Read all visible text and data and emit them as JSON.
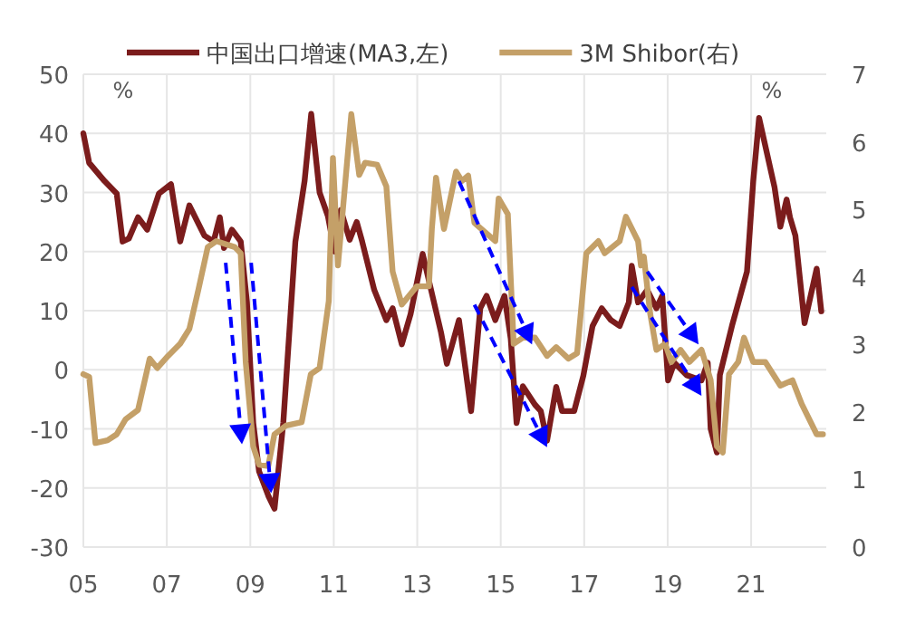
{
  "chart_data": {
    "type": "line",
    "ylabel": "%",
    "y2label": "%",
    "xlim": [
      2005,
      2022.8
    ],
    "xticks": [
      {
        "value": 2005,
        "label": "05"
      },
      {
        "value": 2007,
        "label": "07"
      },
      {
        "value": 2009,
        "label": "09"
      },
      {
        "value": 2011,
        "label": "11"
      },
      {
        "value": 2013,
        "label": "13"
      },
      {
        "value": 2015,
        "label": "15"
      },
      {
        "value": 2017,
        "label": "17"
      },
      {
        "value": 2019,
        "label": "19"
      },
      {
        "value": 2021,
        "label": "21"
      }
    ],
    "ylim": [
      -30,
      50
    ],
    "yticks": [
      -30,
      -20,
      -10,
      0,
      10,
      20,
      30,
      40,
      50
    ],
    "y2lim": [
      0,
      7
    ],
    "y2ticks": [
      0,
      1,
      2,
      3,
      4,
      5,
      6,
      7
    ],
    "grid": true,
    "legend": "top",
    "line_style": "solid",
    "marker": "none",
    "series": [
      {
        "name": "中国出口增速(MA3,左)",
        "color": "#7b1c1c",
        "axis": "y",
        "x": [
          2005.0,
          2005.14,
          2005.51,
          2005.8,
          2005.87,
          2005.94,
          2006.09,
          2006.31,
          2006.53,
          2006.81,
          2007.1,
          2007.18,
          2007.32,
          2007.54,
          2007.9,
          2008.12,
          2008.27,
          2008.37,
          2008.56,
          2008.77,
          2008.92,
          2009.07,
          2009.21,
          2009.43,
          2009.58,
          2009.79,
          2010.08,
          2010.3,
          2010.46,
          2010.66,
          2010.86,
          2011.02,
          2011.17,
          2011.38,
          2011.55,
          2011.68,
          2011.97,
          2012.26,
          2012.41,
          2012.63,
          2012.84,
          2013.13,
          2013.57,
          2013.71,
          2014.0,
          2014.29,
          2014.51,
          2014.66,
          2014.87,
          2015.09,
          2015.24,
          2015.38,
          2015.53,
          2015.82,
          2015.96,
          2016.11,
          2016.33,
          2016.47,
          2016.76,
          2016.98,
          2017.2,
          2017.42,
          2017.64,
          2017.85,
          2018.07,
          2018.14,
          2018.29,
          2018.51,
          2018.73,
          2018.87,
          2019.01,
          2019.16,
          2019.45,
          2019.81,
          2019.96,
          2020.03,
          2020.18,
          2020.25,
          2020.54,
          2020.9,
          2021.05,
          2021.19,
          2021.56,
          2021.7,
          2021.85,
          2021.93,
          2022.06,
          2022.28,
          2022.57,
          2022.68
        ],
        "values": [
          40,
          35,
          31.9,
          29.8,
          25.8,
          21.7,
          22.2,
          25.8,
          23.7,
          29.8,
          31.4,
          27.8,
          21.7,
          27.8,
          22.7,
          21.7,
          25.8,
          20.6,
          23.7,
          21.7,
          11.4,
          -9,
          -17.2,
          -21.3,
          -23.5,
          -9,
          21.7,
          31.9,
          43.3,
          30,
          26,
          20,
          27,
          22,
          25,
          21.7,
          13.5,
          8.4,
          10.4,
          4.3,
          9.4,
          19.6,
          6.3,
          1,
          8.4,
          -7,
          10.4,
          12.5,
          8.4,
          12.5,
          5.3,
          -9,
          -2.8,
          -5.9,
          -7,
          -12,
          -2.9,
          -7,
          -7,
          -1,
          7.4,
          10.4,
          8.4,
          7.4,
          11.4,
          17.6,
          11.4,
          13.5,
          10.4,
          12.5,
          -1.8,
          1.2,
          -0.9,
          -1.8,
          1.2,
          -10,
          -14,
          -0.9,
          7.4,
          16.6,
          31.9,
          42.6,
          30.9,
          24.2,
          28.8,
          25.8,
          22.7,
          7.9,
          17.1,
          9.9
        ]
      },
      {
        "name": "3M Shibor(右)",
        "color": "#c4a068",
        "axis": "y2",
        "x": [
          2005.0,
          2005.14,
          2005.29,
          2005.58,
          2005.8,
          2006.01,
          2006.31,
          2006.59,
          2006.77,
          2007.03,
          2007.32,
          2007.54,
          2007.76,
          2007.98,
          2008.19,
          2008.63,
          2008.77,
          2008.89,
          2009.07,
          2009.21,
          2009.43,
          2009.58,
          2009.86,
          2010.23,
          2010.45,
          2010.66,
          2010.88,
          2010.98,
          2011.1,
          2011.42,
          2011.61,
          2011.75,
          2012.04,
          2012.26,
          2012.41,
          2012.63,
          2012.99,
          2013.28,
          2013.35,
          2013.45,
          2013.64,
          2013.93,
          2014.07,
          2014.22,
          2014.37,
          2014.87,
          2014.95,
          2015.17,
          2015.31,
          2015.53,
          2015.82,
          2016.11,
          2016.33,
          2016.62,
          2016.83,
          2017.05,
          2017.34,
          2017.49,
          2017.85,
          2018.0,
          2018.29,
          2018.36,
          2018.43,
          2018.58,
          2018.73,
          2018.94,
          2019.09,
          2019.31,
          2019.52,
          2019.81,
          2020.03,
          2020.18,
          2020.32,
          2020.47,
          2020.69,
          2020.83,
          2021.05,
          2021.34,
          2021.7,
          2021.99,
          2022.21,
          2022.57,
          2022.72
        ],
        "values": [
          2.56,
          2.52,
          1.54,
          1.58,
          1.67,
          1.89,
          2.03,
          2.79,
          2.65,
          2.83,
          3.01,
          3.23,
          3.82,
          4.44,
          4.53,
          4.44,
          4.35,
          2.74,
          1.49,
          1.22,
          1.2,
          1.67,
          1.8,
          1.85,
          2.56,
          2.65,
          3.64,
          5.76,
          4.17,
          6.41,
          5.51,
          5.69,
          5.66,
          5.34,
          4.08,
          3.59,
          3.86,
          3.86,
          4.71,
          5.47,
          4.71,
          5.56,
          5.42,
          5.5,
          4.8,
          4.53,
          5.16,
          4.93,
          3.01,
          3.1,
          3.1,
          2.83,
          2.96,
          2.79,
          2.87,
          4.35,
          4.53,
          4.35,
          4.53,
          4.89,
          4.53,
          4.17,
          4.3,
          3.46,
          2.92,
          3.01,
          2.74,
          2.92,
          2.74,
          2.92,
          2.47,
          1.49,
          1.4,
          2.56,
          2.74,
          3.1,
          2.74,
          2.74,
          2.39,
          2.47,
          2.12,
          1.67,
          1.67
        ]
      }
    ]
  }
}
